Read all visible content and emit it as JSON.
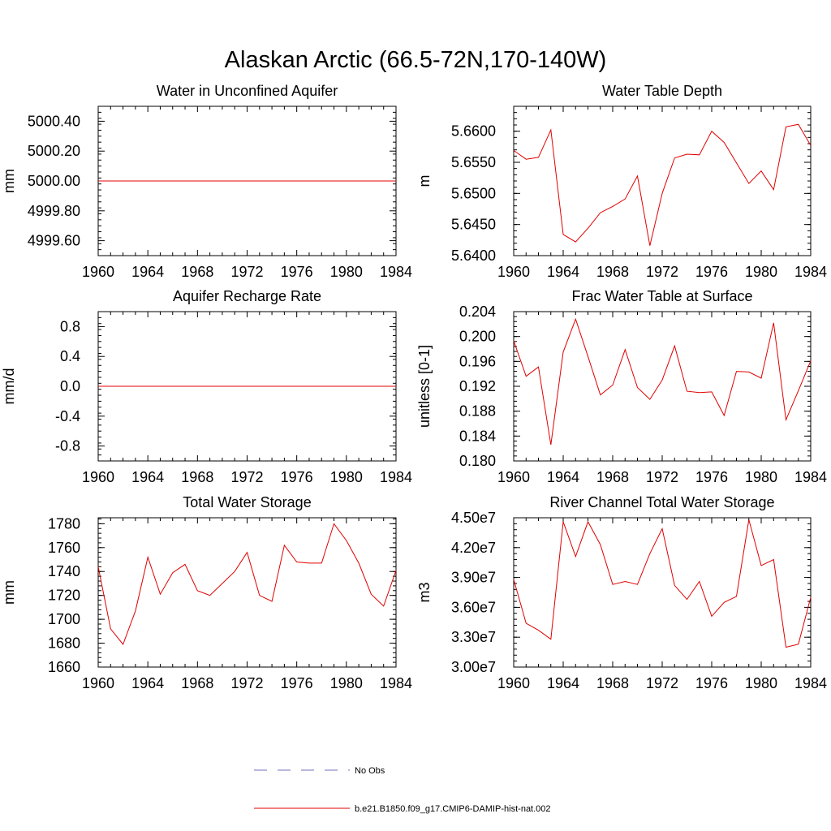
{
  "figure": {
    "title": "Alaskan Arctic (66.5-72N,170-140W)",
    "legend": [
      {
        "label": "No Obs",
        "color": "#7070c0",
        "dash": true
      },
      {
        "label": "b.e21.B1850.f09_g17.CMIP6-DAMIP-hist-nat.002",
        "color": "#e00000",
        "dash": false
      }
    ]
  },
  "chart_data": [
    {
      "type": "line",
      "title": "Water in Unconfined Aquifer",
      "xlabel": "",
      "ylabel": "mm",
      "xlim": [
        1960,
        1984
      ],
      "ylim": [
        4999.5,
        5000.5
      ],
      "xticks": [
        1960,
        1964,
        1968,
        1972,
        1976,
        1980,
        1984
      ],
      "xtick_labels": [
        "1960",
        "1964",
        "1968",
        "1972",
        "1976",
        "1980",
        "1984"
      ],
      "yticks": [
        4999.6,
        4999.8,
        5000.0,
        5000.2,
        5000.4
      ],
      "ytick_labels": [
        "4999.60",
        "4999.80",
        "5000.00",
        "5000.20",
        "5000.40"
      ],
      "yminor_step": 0.04,
      "series": [
        {
          "color": "#e00000",
          "x": [
            1960,
            1961,
            1962,
            1963,
            1964,
            1965,
            1966,
            1967,
            1968,
            1969,
            1970,
            1971,
            1972,
            1973,
            1974,
            1975,
            1976,
            1977,
            1978,
            1979,
            1980,
            1981,
            1982,
            1983,
            1984
          ],
          "values": [
            5000,
            5000,
            5000,
            5000,
            5000,
            5000,
            5000,
            5000,
            5000,
            5000,
            5000,
            5000,
            5000,
            5000,
            5000,
            5000,
            5000,
            5000,
            5000,
            5000,
            5000,
            5000,
            5000,
            5000,
            5000
          ]
        }
      ]
    },
    {
      "type": "line",
      "title": "Water Table Depth",
      "xlabel": "",
      "ylabel": "m",
      "xlim": [
        1960,
        1984
      ],
      "ylim": [
        5.64,
        5.664
      ],
      "xticks": [
        1960,
        1964,
        1968,
        1972,
        1976,
        1980,
        1984
      ],
      "xtick_labels": [
        "1960",
        "1964",
        "1968",
        "1972",
        "1976",
        "1980",
        "1984"
      ],
      "yticks": [
        5.64,
        5.645,
        5.65,
        5.655,
        5.66
      ],
      "ytick_labels": [
        "5.6400",
        "5.6450",
        "5.6500",
        "5.6550",
        "5.6600"
      ],
      "yminor_step": 0.001,
      "series": [
        {
          "color": "#e00000",
          "x": [
            1960,
            1961,
            1962,
            1963,
            1964,
            1965,
            1966,
            1967,
            1968,
            1969,
            1970,
            1971,
            1972,
            1973,
            1974,
            1975,
            1976,
            1977,
            1978,
            1979,
            1980,
            1981,
            1982,
            1983,
            1984
          ],
          "values": [
            5.6569,
            5.6555,
            5.6558,
            5.6602,
            5.6434,
            5.6422,
            5.6444,
            5.6469,
            5.6479,
            5.6491,
            5.6528,
            5.6416,
            5.65,
            5.6557,
            5.6563,
            5.6562,
            5.66,
            5.6582,
            5.6549,
            5.6516,
            5.6536,
            5.6506,
            5.6607,
            5.6611,
            5.6577
          ]
        }
      ]
    },
    {
      "type": "line",
      "title": "Aquifer Recharge Rate",
      "xlabel": "",
      "ylabel": "mm/d",
      "xlim": [
        1960,
        1984
      ],
      "ylim": [
        -1.0,
        1.0
      ],
      "xticks": [
        1960,
        1964,
        1968,
        1972,
        1976,
        1980,
        1984
      ],
      "xtick_labels": [
        "1960",
        "1964",
        "1968",
        "1972",
        "1976",
        "1980",
        "1984"
      ],
      "yticks": [
        -0.8,
        -0.4,
        0.0,
        0.4,
        0.8
      ],
      "ytick_labels": [
        "-0.8",
        "-0.4",
        "0.0",
        "0.4",
        "0.8"
      ],
      "yminor_step": 0.08,
      "series": [
        {
          "color": "#e00000",
          "x": [
            1960,
            1961,
            1962,
            1963,
            1964,
            1965,
            1966,
            1967,
            1968,
            1969,
            1970,
            1971,
            1972,
            1973,
            1974,
            1975,
            1976,
            1977,
            1978,
            1979,
            1980,
            1981,
            1982,
            1983,
            1984
          ],
          "values": [
            0,
            0,
            0,
            0,
            0,
            0,
            0,
            0,
            0,
            0,
            0,
            0,
            0,
            0,
            0,
            0,
            0,
            0,
            0,
            0,
            0,
            0,
            0,
            0,
            0
          ]
        }
      ]
    },
    {
      "type": "line",
      "title": "Frac Water Table at Surface",
      "xlabel": "",
      "ylabel": "unitless [0-1]",
      "xlim": [
        1960,
        1984
      ],
      "ylim": [
        0.18,
        0.204
      ],
      "xticks": [
        1960,
        1964,
        1968,
        1972,
        1976,
        1980,
        1984
      ],
      "xtick_labels": [
        "1960",
        "1964",
        "1968",
        "1972",
        "1976",
        "1980",
        "1984"
      ],
      "yticks": [
        0.18,
        0.184,
        0.188,
        0.192,
        0.196,
        0.2,
        0.204
      ],
      "ytick_labels": [
        "0.180",
        "0.184",
        "0.188",
        "0.192",
        "0.196",
        "0.200",
        "0.204"
      ],
      "yminor_step": 0.0008,
      "series": [
        {
          "color": "#e00000",
          "x": [
            1960,
            1961,
            1962,
            1963,
            1964,
            1965,
            1966,
            1967,
            1968,
            1969,
            1970,
            1971,
            1972,
            1973,
            1974,
            1975,
            1976,
            1977,
            1978,
            1979,
            1980,
            1981,
            1982,
            1983,
            1984
          ],
          "values": [
            0.1993,
            0.1936,
            0.1951,
            0.1826,
            0.1975,
            0.2028,
            0.1968,
            0.1906,
            0.1922,
            0.1979,
            0.1918,
            0.1899,
            0.193,
            0.1985,
            0.1912,
            0.191,
            0.1911,
            0.1873,
            0.1944,
            0.1943,
            0.1933,
            0.2022,
            0.1866,
            0.1913,
            0.1961
          ]
        }
      ]
    },
    {
      "type": "line",
      "title": "Total Water Storage",
      "xlabel": "",
      "ylabel": "mm",
      "xlim": [
        1960,
        1984
      ],
      "ylim": [
        1660,
        1785
      ],
      "xticks": [
        1960,
        1964,
        1968,
        1972,
        1976,
        1980,
        1984
      ],
      "xtick_labels": [
        "1960",
        "1964",
        "1968",
        "1972",
        "1976",
        "1980",
        "1984"
      ],
      "yticks": [
        1660,
        1680,
        1700,
        1720,
        1740,
        1760,
        1780
      ],
      "ytick_labels": [
        "1660",
        "1680",
        "1700",
        "1720",
        "1740",
        "1760",
        "1780"
      ],
      "yminor_step": 4,
      "series": [
        {
          "color": "#e00000",
          "x": [
            1960,
            1961,
            1962,
            1963,
            1964,
            1965,
            1966,
            1967,
            1968,
            1969,
            1970,
            1971,
            1972,
            1973,
            1974,
            1975,
            1976,
            1977,
            1978,
            1979,
            1980,
            1981,
            1982,
            1983,
            1984
          ],
          "values": [
            1744,
            1692,
            1679,
            1707,
            1752,
            1721,
            1739,
            1746,
            1724,
            1720,
            1730,
            1740,
            1756,
            1720,
            1715,
            1762,
            1748,
            1747,
            1747,
            1780,
            1766,
            1747,
            1721,
            1711,
            1741
          ]
        }
      ]
    },
    {
      "type": "line",
      "title": "River Channel Total Water Storage",
      "xlabel": "",
      "ylabel": "m3",
      "xlim": [
        1960,
        1984
      ],
      "ylim": [
        30000000,
        45000000
      ],
      "xticks": [
        1960,
        1964,
        1968,
        1972,
        1976,
        1980,
        1984
      ],
      "xtick_labels": [
        "1960",
        "1964",
        "1968",
        "1972",
        "1976",
        "1980",
        "1984"
      ],
      "yticks": [
        30000000,
        33000000,
        36000000,
        39000000,
        42000000,
        45000000
      ],
      "ytick_labels": [
        "3.00e7",
        "3.30e7",
        "3.60e7",
        "3.90e7",
        "4.20e7",
        "4.50e7"
      ],
      "yminor_step": 600000,
      "series": [
        {
          "color": "#e00000",
          "x": [
            1960,
            1961,
            1962,
            1963,
            1964,
            1965,
            1966,
            1967,
            1968,
            1969,
            1970,
            1971,
            1972,
            1973,
            1974,
            1975,
            1976,
            1977,
            1978,
            1979,
            1980,
            1981,
            1982,
            1983,
            1984
          ],
          "values": [
            38800000,
            34400000,
            33700000,
            32800000,
            44600000,
            41100000,
            44600000,
            42300000,
            38300000,
            38600000,
            38300000,
            41400000,
            43900000,
            38200000,
            36800000,
            38600000,
            35100000,
            36500000,
            37100000,
            44800000,
            40200000,
            40800000,
            32000000,
            32300000,
            37000000
          ]
        }
      ]
    }
  ]
}
